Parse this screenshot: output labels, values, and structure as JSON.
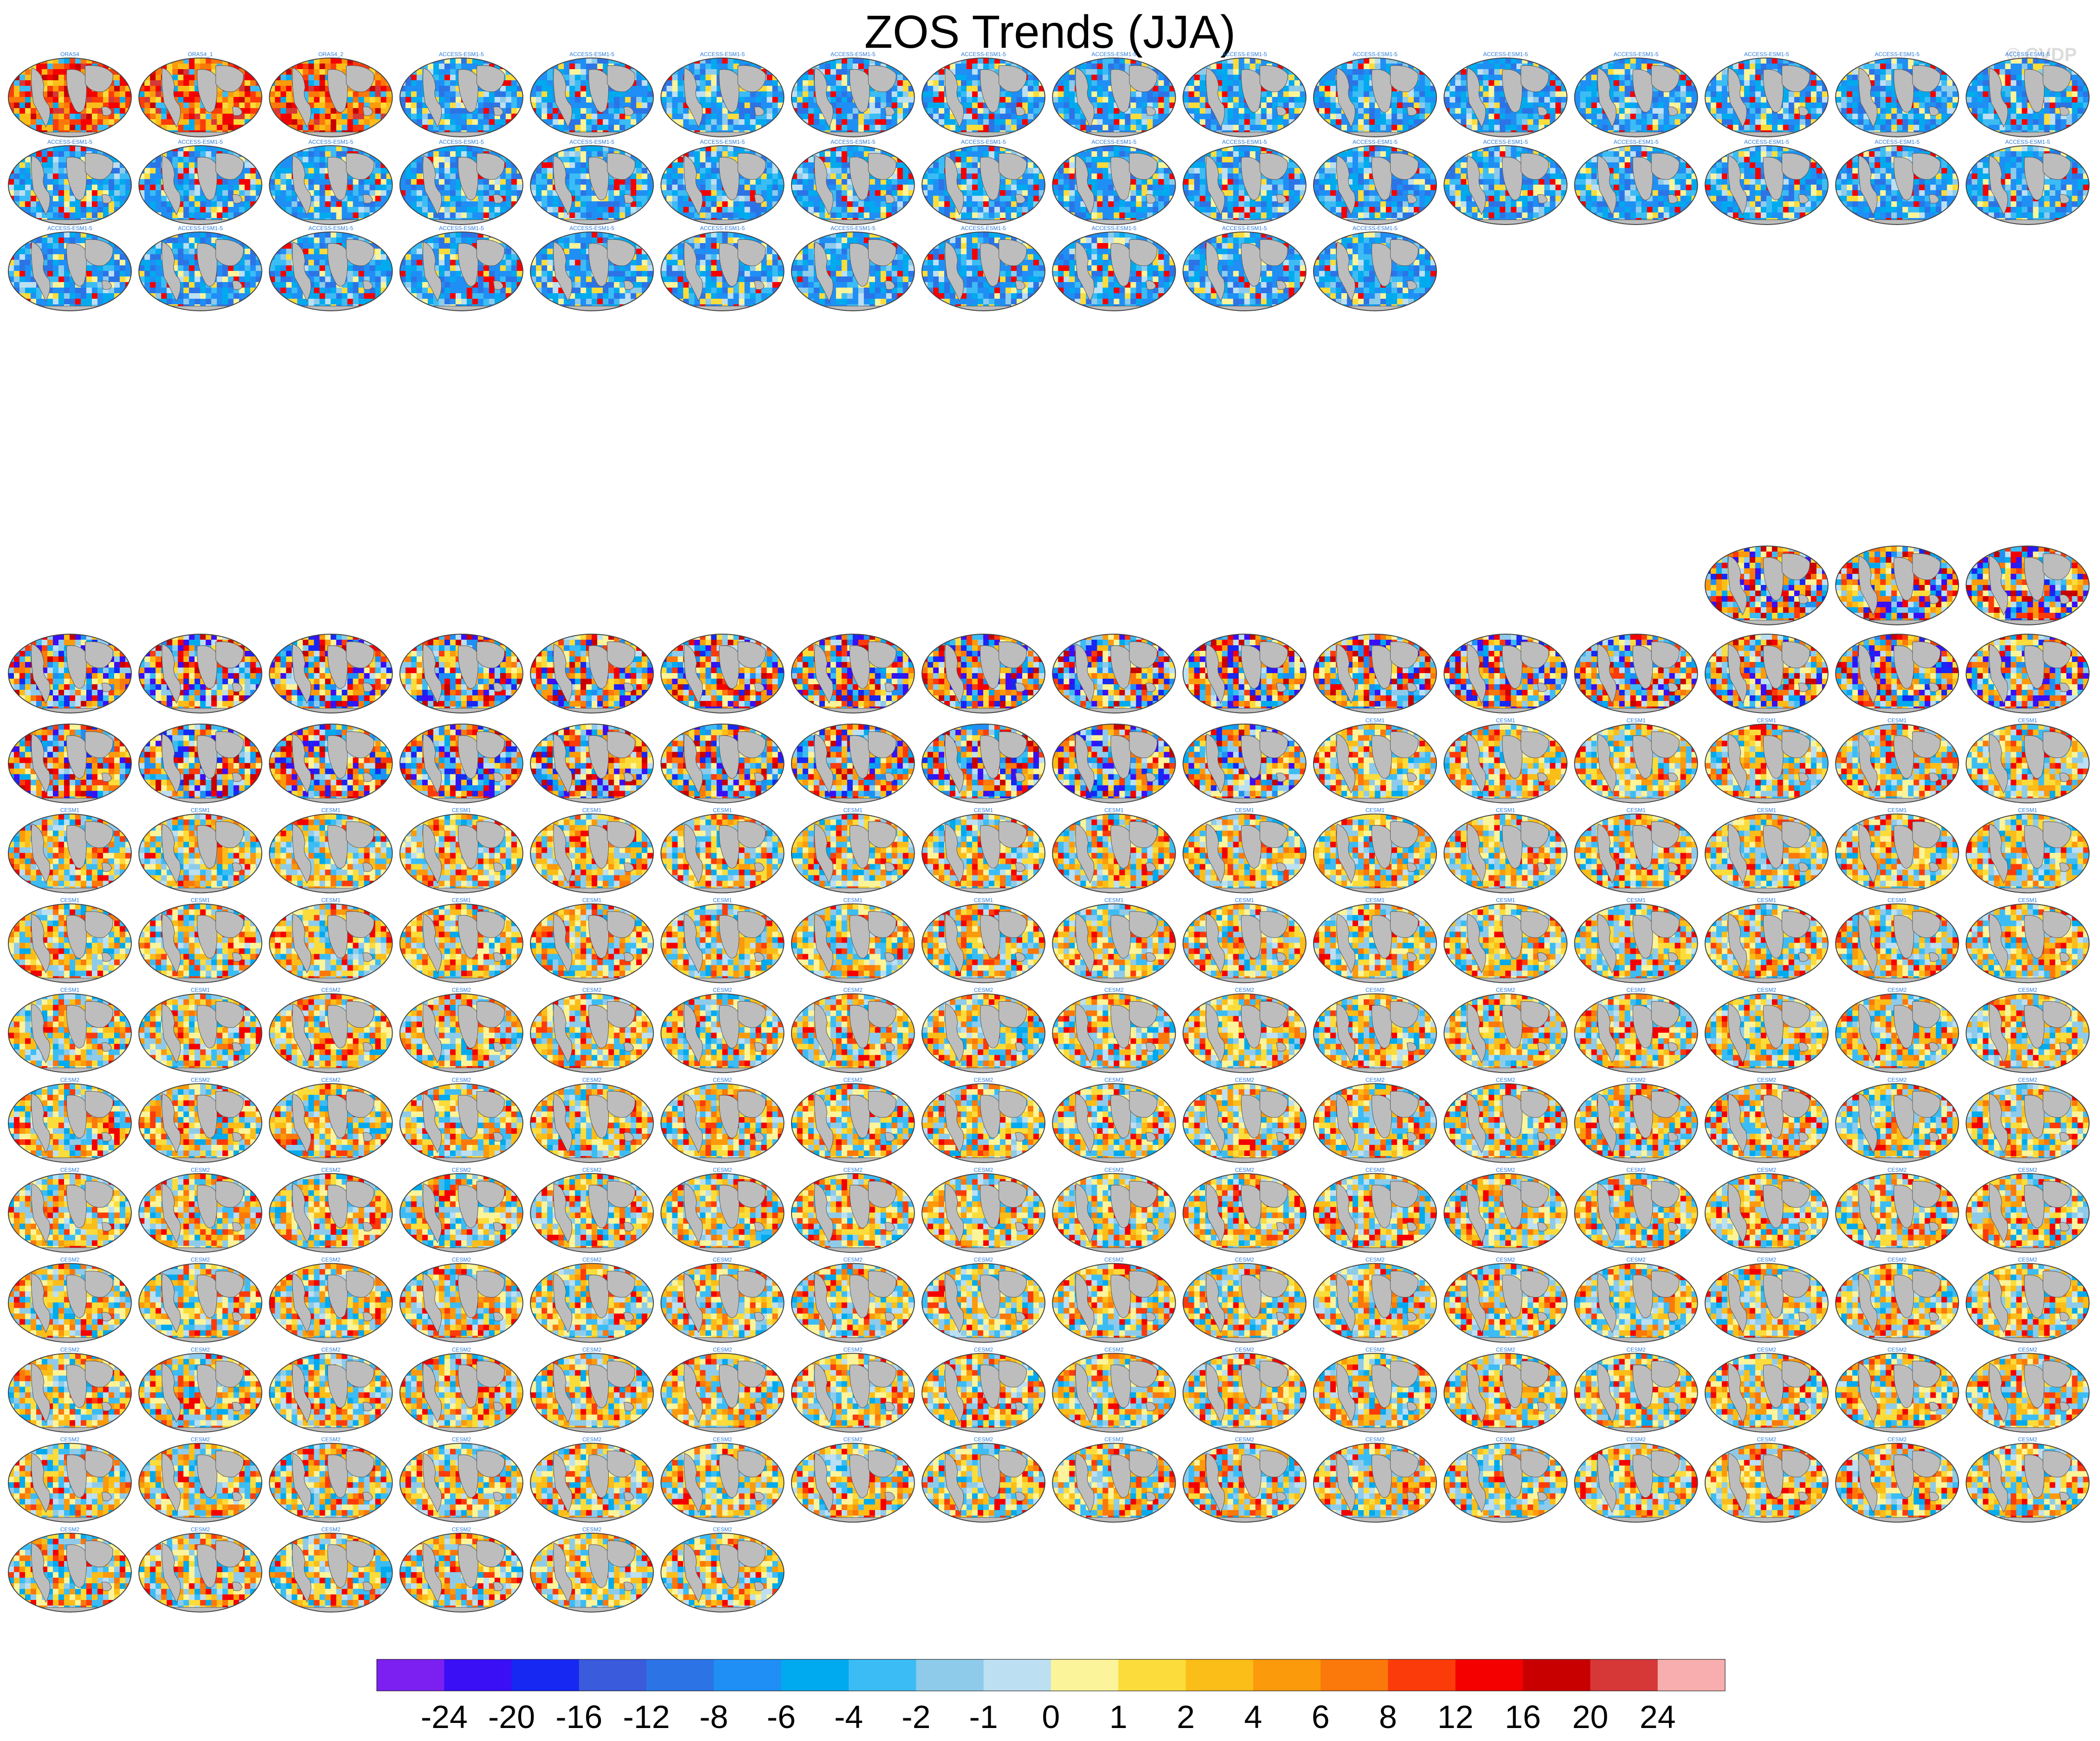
{
  "title": "ZOS Trends (JJA)",
  "copyright": "© CVDP",
  "colors": {
    "land": "#bdbdbd",
    "colorbar": [
      "#7b20f0",
      "#3a0ff5",
      "#1628f2",
      "#3a5bdc",
      "#2c74e6",
      "#1f8ff5",
      "#00aaee",
      "#3cbcf5",
      "#8ecbea",
      "#bcdff2",
      "#fbf49a",
      "#fbdc3a",
      "#fbbd18",
      "#fb9a0a",
      "#fb780a",
      "#fb3c0a",
      "#f50000",
      "#c80000",
      "#d63838",
      "#f8aeae"
    ]
  },
  "colorbar_labels": [
    "-24",
    "-20",
    "-16",
    "-12",
    "-8",
    "-6",
    "-4",
    "-2",
    "-1",
    "0",
    "1",
    "2",
    "4",
    "6",
    "8",
    "12",
    "16",
    "20",
    "24"
  ],
  "groups": [
    {
      "name": "obs",
      "labels": [
        "ORAS4",
        "ORAS4_1",
        "ORAS4_2"
      ],
      "count": 3,
      "tone": "warm-strong"
    },
    {
      "name": "ACCESS-ESM1-5",
      "label_prefix": "ACCESS-ESM1-5",
      "count": 40,
      "tone": "cool"
    },
    {
      "name": "CanESM2",
      "count": 3,
      "tone": "mixed-strong"
    },
    {
      "name": "CanESM5",
      "count": 26,
      "tone": "mixed-strong"
    },
    {
      "name": "CESM1",
      "label_prefix": "CESM1",
      "count": 40,
      "tone": "mixed"
    },
    {
      "name": "CESM2",
      "label_prefix": "CESM2",
      "count": 100,
      "tone": "mixed"
    }
  ],
  "chart_data": {
    "type": "heatmap",
    "title": "ZOS Trends (JJA)",
    "colorbar": {
      "boundaries": [
        "-24",
        "-20",
        "-16",
        "-12",
        "-8",
        "-6",
        "-4",
        "-2",
        "-1",
        "0",
        "1",
        "2",
        "4",
        "6",
        "8",
        "12",
        "16",
        "20",
        "24"
      ]
    },
    "panel_counts": {
      "ORAS4": 3,
      "ACCESS-ESM1-5": 40,
      "CanESM2": 3,
      "CanESM5": 26,
      "CESM1": 40,
      "CESM2": 100
    }
  }
}
